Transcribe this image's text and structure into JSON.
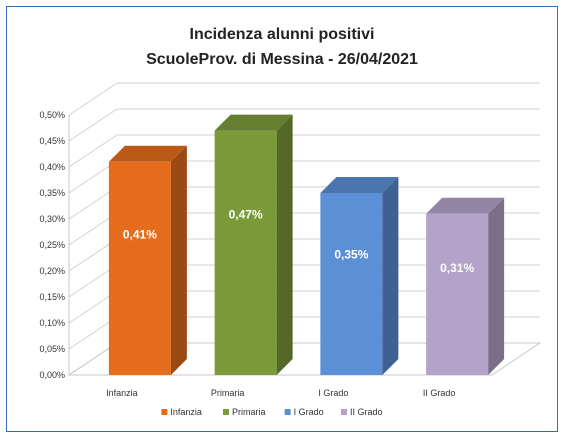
{
  "chart_data": {
    "type": "bar",
    "title": "Incidenza alunni positivi",
    "subtitle": "ScuoleProv. di Messina - 26/04/2021",
    "categories": [
      "Infanzia",
      "Primaria",
      "I Grado",
      "II Grado"
    ],
    "values": [
      0.41,
      0.47,
      0.35,
      0.31
    ],
    "value_labels": [
      "0,41%",
      "0,47%",
      "0,35%",
      "0,31%"
    ],
    "colors": [
      "#e46c1c",
      "#7b9a3a",
      "#5b8fd6",
      "#b3a2c9"
    ],
    "ylim": [
      0,
      0.5
    ],
    "yticks": [
      "0,00%",
      "0,05%",
      "0,10%",
      "0,15%",
      "0,20%",
      "0,25%",
      "0,30%",
      "0,35%",
      "0,40%",
      "0,45%",
      "0,50%"
    ],
    "legend": [
      "Infanzia",
      "Primaria",
      "I Grado",
      "II Grado"
    ],
    "legend_position": "bottom",
    "grid": true,
    "style": "3d-column"
  }
}
